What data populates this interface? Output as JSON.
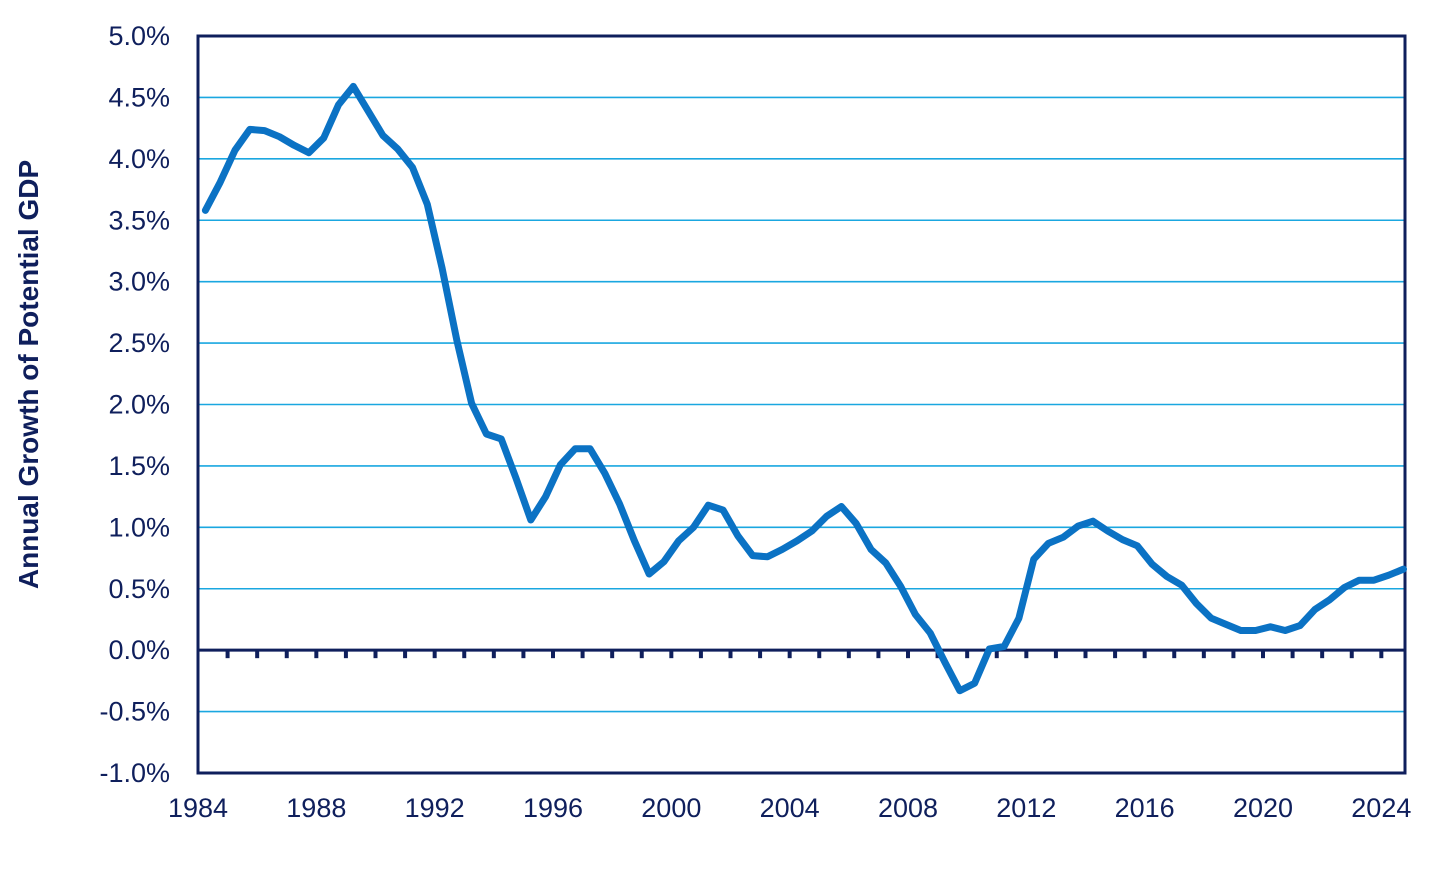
{
  "chart_data": {
    "type": "line",
    "title": "",
    "xlabel": "",
    "ylabel": "Annual Growth of Potential GDP",
    "xlim": [
      1984,
      2024.8
    ],
    "ylim": [
      -1.0,
      5.0
    ],
    "y_unit": "%",
    "x_tick_labels": [
      "1984",
      "1988",
      "1992",
      "1996",
      "2000",
      "2004",
      "2008",
      "2012",
      "2016",
      "2020",
      "2024"
    ],
    "y_tick_labels": [
      "5.0%",
      "4.5%",
      "4.0%",
      "3.5%",
      "3.0%",
      "2.5%",
      "2.0%",
      "1.5%",
      "1.0%",
      "0.5%",
      "0.0%",
      "-0.5%",
      "-1.0%"
    ],
    "y_tick_values": [
      5.0,
      4.5,
      4.0,
      3.5,
      3.0,
      2.5,
      2.0,
      1.5,
      1.0,
      0.5,
      0.0,
      -0.5,
      -1.0
    ],
    "grid": true,
    "legend": "none",
    "colors": {
      "line": "#0b72c4",
      "grid": "#1aa7e0",
      "axis": "#0f1f5c",
      "text": "#0f1f5c"
    },
    "series": [
      {
        "x": [
          1984.25,
          1984.75,
          1985.25,
          1985.75,
          1986.25,
          1986.75,
          1987.25,
          1987.75,
          1988.25,
          1988.75,
          1989.25,
          1989.75,
          1990.25,
          1990.75,
          1991.25,
          1991.75,
          1992.25,
          1992.75,
          1993.25,
          1993.75,
          1994.25,
          1994.75,
          1995.25,
          1995.75,
          1996.25,
          1996.75,
          1997.25,
          1997.75,
          1998.25,
          1998.75,
          1999.25,
          1999.75,
          2000.25,
          2000.75,
          2001.25,
          2001.75,
          2002.25,
          2002.75,
          2003.25,
          2003.75,
          2004.25,
          2004.75,
          2005.25,
          2005.75,
          2006.25,
          2006.75,
          2007.25,
          2007.75,
          2008.25,
          2008.75,
          2009.25,
          2009.75,
          2010.25,
          2010.75,
          2011.25,
          2011.75,
          2012.25,
          2012.75,
          2013.25,
          2013.75,
          2014.25,
          2014.75,
          2015.25,
          2015.75,
          2016.25,
          2016.75,
          2017.25,
          2017.75,
          2018.25,
          2018.75,
          2019.25,
          2019.75,
          2020.25,
          2020.75,
          2021.25,
          2021.75,
          2022.25,
          2022.75,
          2023.25,
          2023.75,
          2024.25,
          2024.75
        ],
        "values": [
          3.58,
          3.81,
          4.07,
          4.24,
          4.23,
          4.18,
          4.11,
          4.05,
          4.17,
          4.44,
          4.59,
          4.39,
          4.19,
          4.08,
          3.93,
          3.63,
          3.11,
          2.52,
          2.01,
          1.76,
          1.72,
          1.4,
          1.06,
          1.25,
          1.51,
          1.64,
          1.64,
          1.44,
          1.19,
          0.89,
          0.62,
          0.72,
          0.89,
          1.0,
          1.18,
          1.14,
          0.93,
          0.77,
          0.76,
          0.82,
          0.89,
          0.97,
          1.09,
          1.17,
          1.03,
          0.82,
          0.71,
          0.52,
          0.29,
          0.14,
          -0.1,
          -0.33,
          -0.27,
          0.01,
          0.03,
          0.26,
          0.74,
          0.87,
          0.92,
          1.01,
          1.05,
          0.97,
          0.9,
          0.85,
          0.7,
          0.6,
          0.53,
          0.38,
          0.26,
          0.21,
          0.16,
          0.16,
          0.19,
          0.16,
          0.2,
          0.33,
          0.41,
          0.51,
          0.57,
          0.57,
          0.61,
          0.66
        ]
      }
    ]
  }
}
